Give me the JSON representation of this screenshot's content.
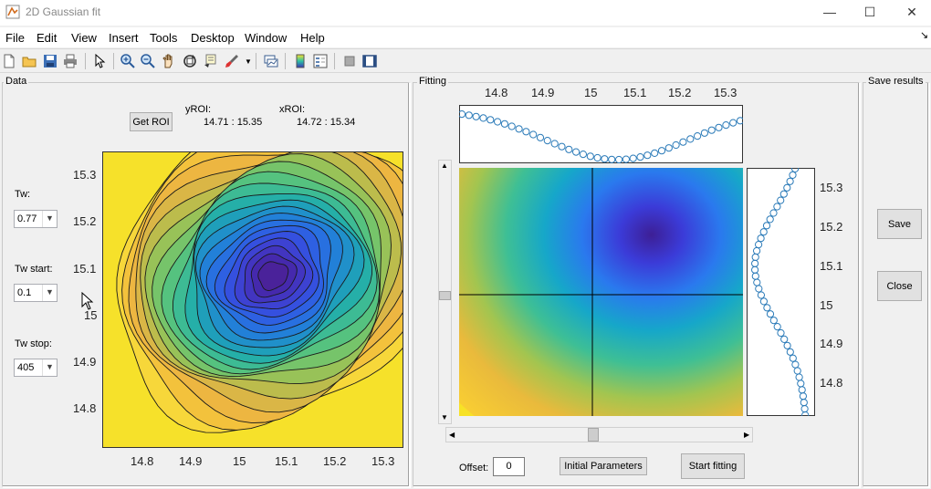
{
  "window": {
    "title": "2D Gaussian fit",
    "minimize": "—",
    "maximize": "☐",
    "close": "✕"
  },
  "menu": [
    "File",
    "Edit",
    "View",
    "Insert",
    "Tools",
    "Desktop",
    "Window",
    "Help"
  ],
  "menu_arrow": "↘",
  "toolbar": [
    "new-file",
    "open-folder",
    "save",
    "print",
    "select-arrow",
    "zoom-in",
    "zoom-out",
    "pan-hand",
    "rotate-3d",
    "data-cursor",
    "brush",
    "link-plot",
    "colorbar",
    "legend",
    "hide-plot-tools",
    "show-plot-tools"
  ],
  "data_panel": {
    "title": "Data",
    "get_roi": "Get ROI",
    "yroi_label": "yROI:",
    "yroi_value": "14.71 : 15.35",
    "xroi_label": "xROI:",
    "xroi_value": "14.72 : 15.34",
    "tw_label": "Tw:",
    "tw_value": "0.77",
    "tw_start_label": "Tw start:",
    "tw_start_value": "0.1",
    "tw_stop_label": "Tw stop:",
    "tw_stop_value": "405",
    "y_ticks": [
      "15.3",
      "15.2",
      "15.1",
      "15",
      "14.9",
      "14.8"
    ],
    "x_ticks": [
      "14.8",
      "14.9",
      "15",
      "15.1",
      "15.2",
      "15.3"
    ]
  },
  "fitting_panel": {
    "title": "Fitting",
    "top_ticks": [
      "14.8",
      "14.9",
      "15",
      "15.1",
      "15.2",
      "15.3"
    ],
    "right_ticks": [
      "15.3",
      "15.2",
      "15.1",
      "15",
      "14.9",
      "14.8"
    ],
    "offset_label": "Offset:",
    "offset_value": "0",
    "initial_params": "Initial Parameters",
    "start_fitting": "Start fitting"
  },
  "save_panel": {
    "title": "Save results",
    "save": "Save",
    "close": "Close"
  }
}
